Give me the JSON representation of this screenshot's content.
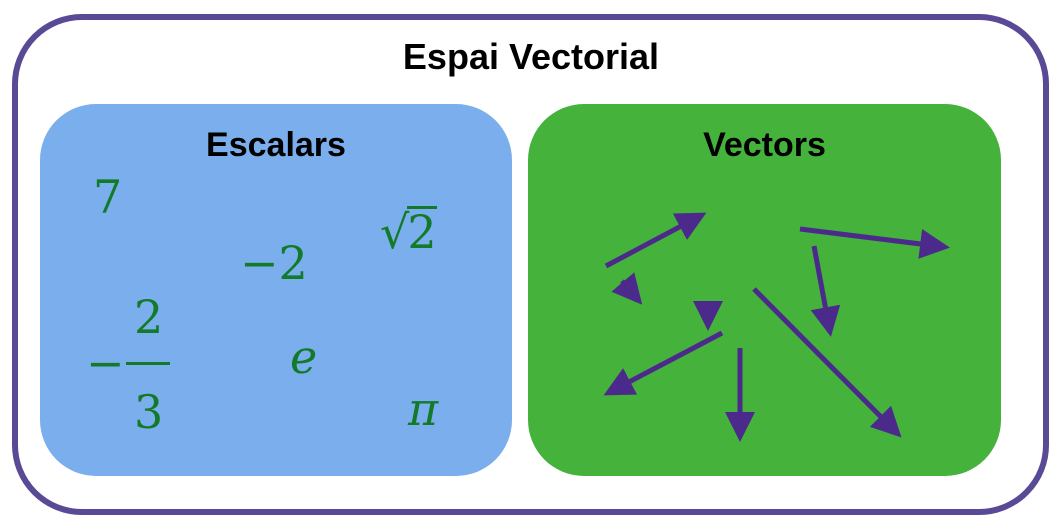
{
  "title": "Espai Vectorial",
  "scalars_panel": {
    "title": "Escalars",
    "items": {
      "seven": "7",
      "minus_two": "−2",
      "sqrt_symbol": "√",
      "sqrt_radicand": "2",
      "e": "e",
      "pi": "π",
      "frac_sign": "−",
      "frac_num": "2",
      "frac_den": "3"
    }
  },
  "vectors_panel": {
    "title": "Vectors",
    "vector_count": 9
  },
  "colors": {
    "frame": "#5a4a96",
    "scalars_bg": "#7aaeec",
    "vectors_bg": "#45b23c",
    "scalar_text": "#137a2a",
    "arrow": "#4b2a8c"
  }
}
